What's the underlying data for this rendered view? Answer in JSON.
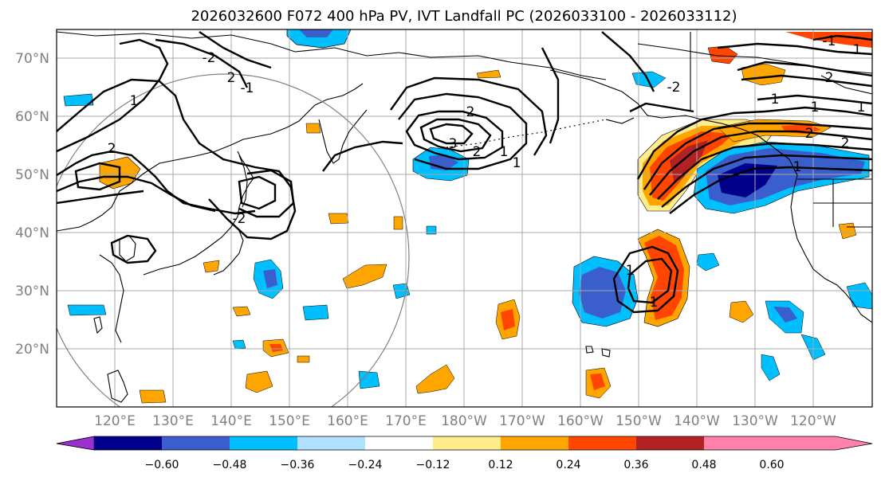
{
  "title": "2026032600 F072 400 hPa PV, IVT Landfall PC (2026033100 - 2026033112)",
  "lat_labels": [
    "70°N",
    "60°N",
    "50°N",
    "40°N",
    "30°N",
    "20°N"
  ],
  "lon_labels": [
    "120°E",
    "130°E",
    "140°E",
    "150°E",
    "160°E",
    "170°E",
    "180°W",
    "170°W",
    "160°W",
    "150°W",
    "140°W",
    "130°W",
    "120°W"
  ],
  "colorbar": {
    "tick_labels": [
      "−0.60",
      "−0.48",
      "−0.36",
      "−0.24",
      "−0.12",
      "0.12",
      "0.24",
      "0.36",
      "0.48",
      "0.60"
    ],
    "colors": [
      "#9b30d0",
      "#00008b",
      "#3a5fcd",
      "#00bfff",
      "#b0e2ff",
      "#ffffff",
      "#ffec8b",
      "#ffa500",
      "#ff4500",
      "#b22222",
      "#ff82ab"
    ]
  },
  "contour_labels": [
    "-2",
    "2",
    "-1",
    "1",
    "2",
    "2",
    "3",
    "2",
    "1",
    "1",
    "-2",
    "-1",
    "1",
    "2",
    "1",
    "2",
    "1",
    "2",
    "1",
    "1",
    "1",
    "1",
    "-2"
  ]
}
